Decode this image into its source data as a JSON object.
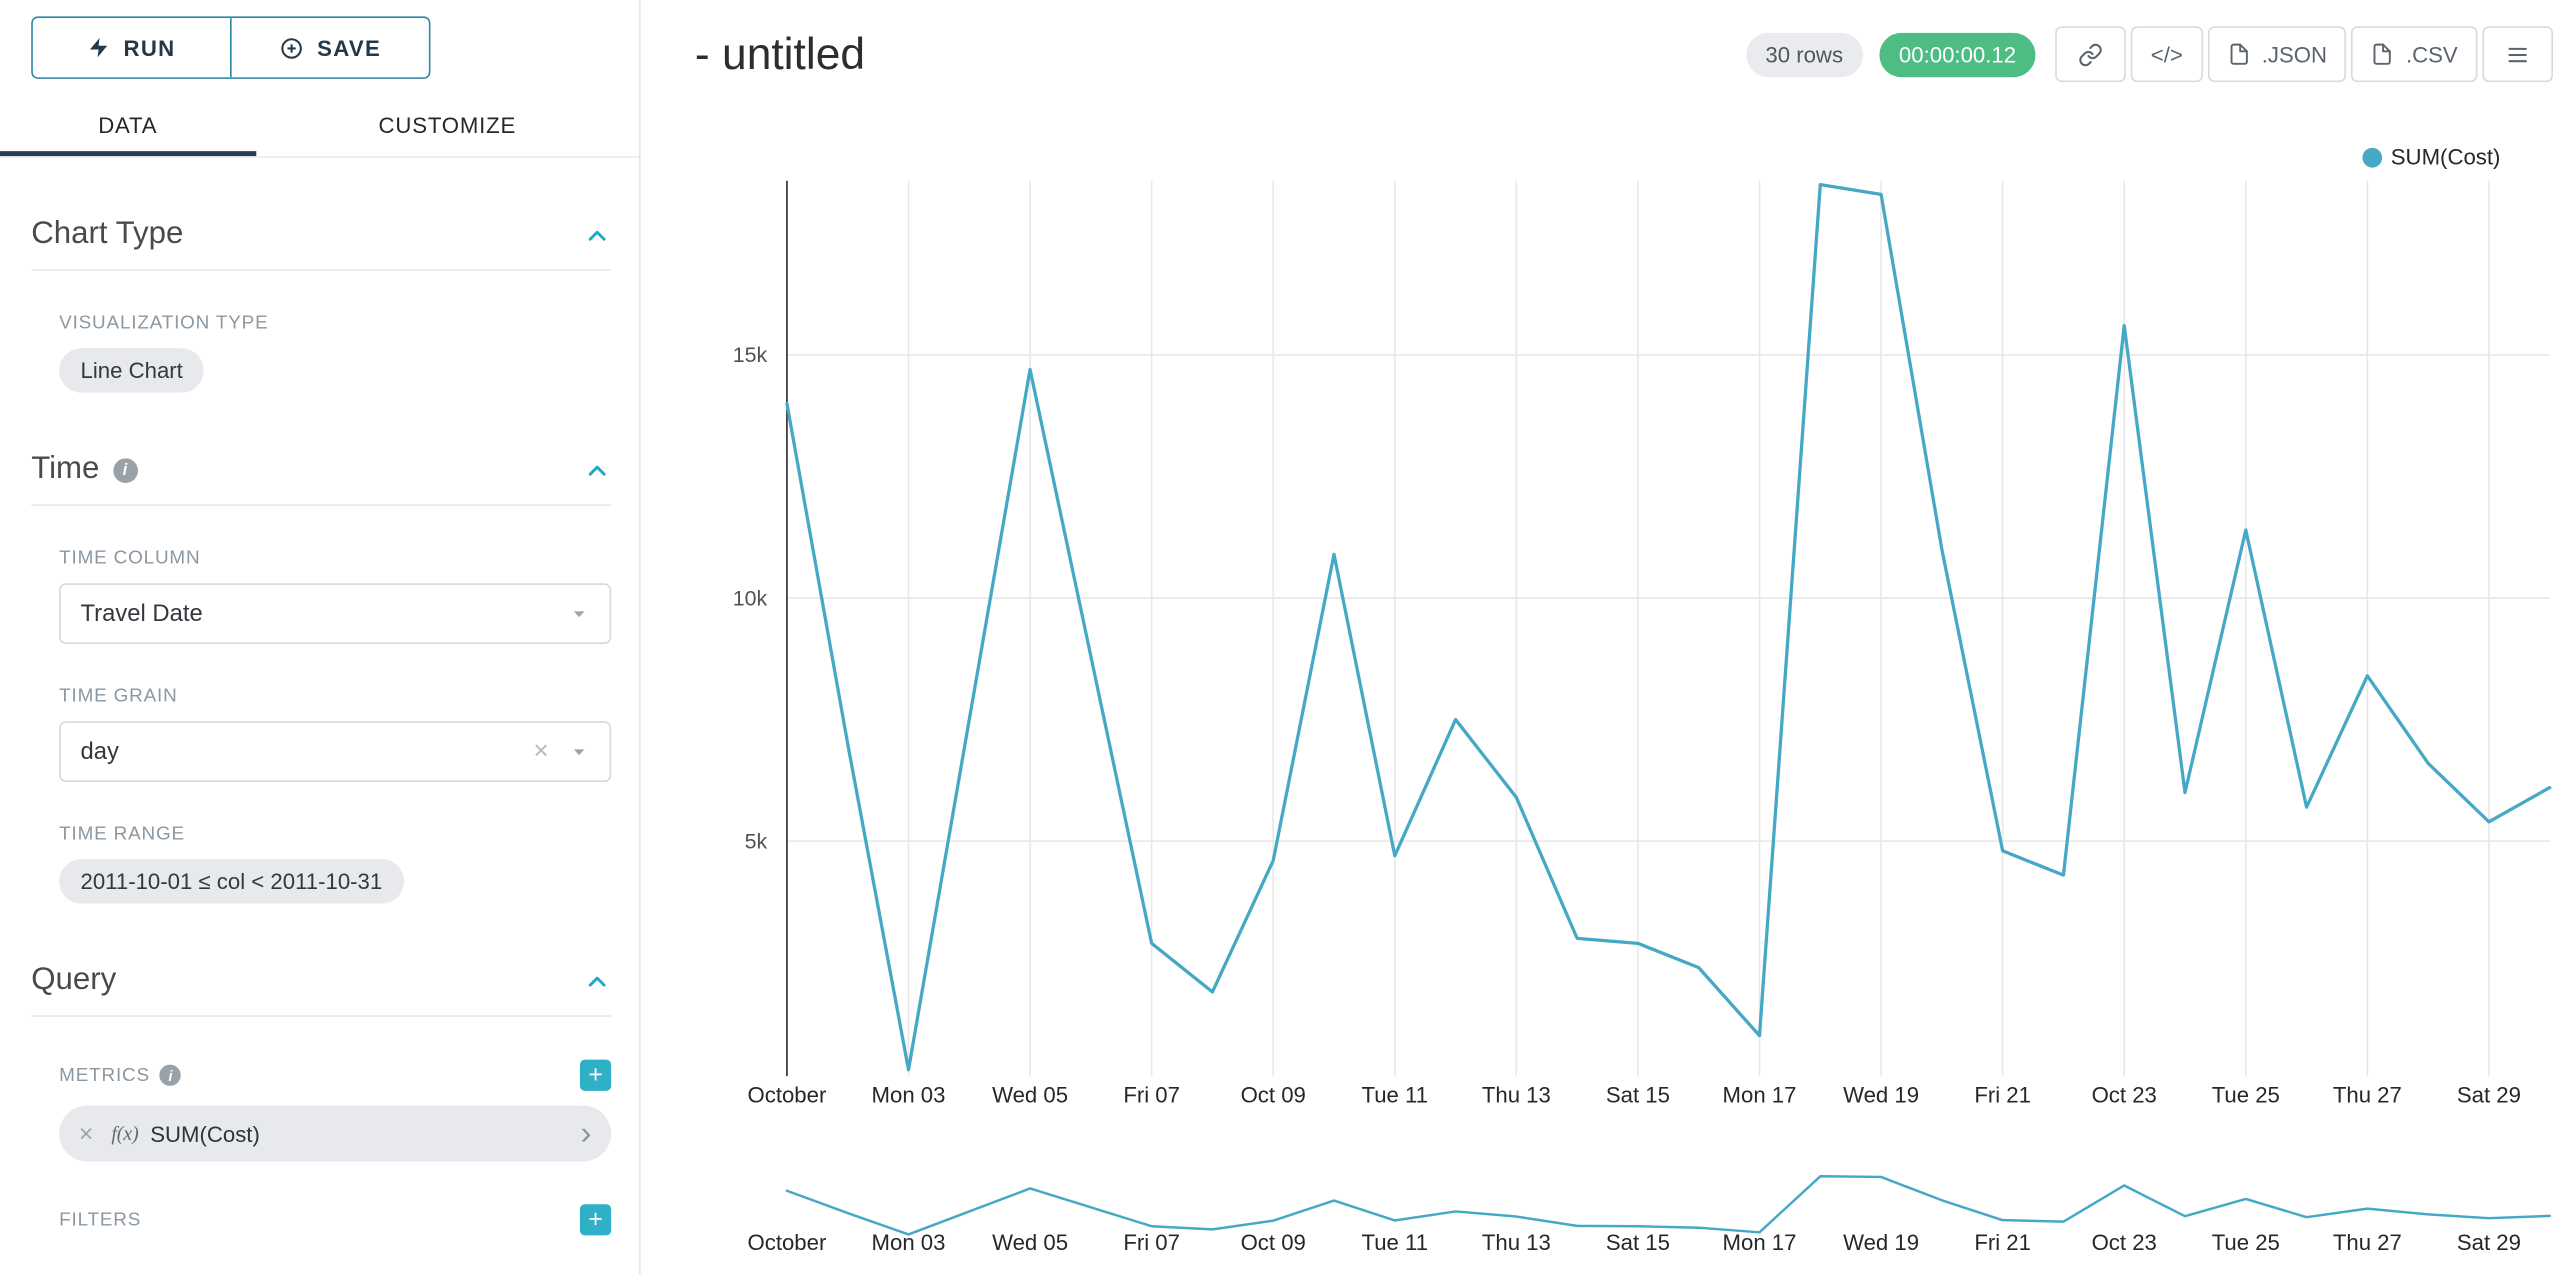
{
  "toolbar": {
    "run_label": "RUN",
    "save_label": "SAVE"
  },
  "tabs": [
    {
      "label": "DATA",
      "active": true
    },
    {
      "label": "CUSTOMIZE",
      "active": false
    }
  ],
  "panel": {
    "chart_type": {
      "title": "Chart Type",
      "viz_label": "VISUALIZATION TYPE",
      "viz_value": "Line Chart"
    },
    "time": {
      "title": "Time",
      "column_label": "TIME COLUMN",
      "column_value": "Travel Date",
      "grain_label": "TIME GRAIN",
      "grain_value": "day",
      "range_label": "TIME RANGE",
      "range_value": "2011-10-01 ≤ col < 2011-10-31"
    },
    "query": {
      "title": "Query",
      "metrics_label": "METRICS",
      "metric_name": "SUM(Cost)",
      "filters_label": "FILTERS"
    }
  },
  "header": {
    "title": "- untitled",
    "rows_badge": "30 rows",
    "timer_badge": "00:00:00.12",
    "json_label": ".JSON",
    "csv_label": ".CSV"
  },
  "icons": {
    "info": "i",
    "clear": "×",
    "plus": "+",
    "code": "</>",
    "chevron_right": "›",
    "fx": "f(x)"
  },
  "colors": {
    "accent": "#20A7C9",
    "line": "#45a8c4",
    "timer_green": "#4dbd84",
    "tab_underline": "#2a3d52"
  },
  "chart_data": {
    "type": "line",
    "title": "",
    "xlabel": "",
    "ylabel": "",
    "x_tick_labels": [
      "October",
      "Mon 03",
      "Wed 05",
      "Fri 07",
      "Oct 09",
      "Tue 11",
      "Thu 13",
      "Sat 15",
      "Mon 17",
      "Wed 19",
      "Fri 21",
      "Oct 23",
      "Tue 25",
      "Thu 27",
      "Sat 29"
    ],
    "y_tick_labels": [
      "15k",
      "10k",
      "5k"
    ],
    "y_tick_values": [
      15000,
      10000,
      5000
    ],
    "ylim": [
      0,
      18600
    ],
    "grid": true,
    "legend_position": "top-right",
    "has_brush_context": true,
    "x_dates": "2011-10-01 to 2011-10-30, daily",
    "series": [
      {
        "name": "SUM(Cost)",
        "color": "#45a8c4",
        "values": [
          14000,
          7000,
          300,
          7500,
          14700,
          8800,
          2900,
          1900,
          4600,
          10900,
          4700,
          7500,
          5900,
          3000,
          2900,
          2400,
          1000,
          18500,
          18300,
          11000,
          4800,
          4300,
          15600,
          6000,
          11400,
          5700,
          8400,
          6600,
          5400,
          6100
        ]
      }
    ]
  }
}
